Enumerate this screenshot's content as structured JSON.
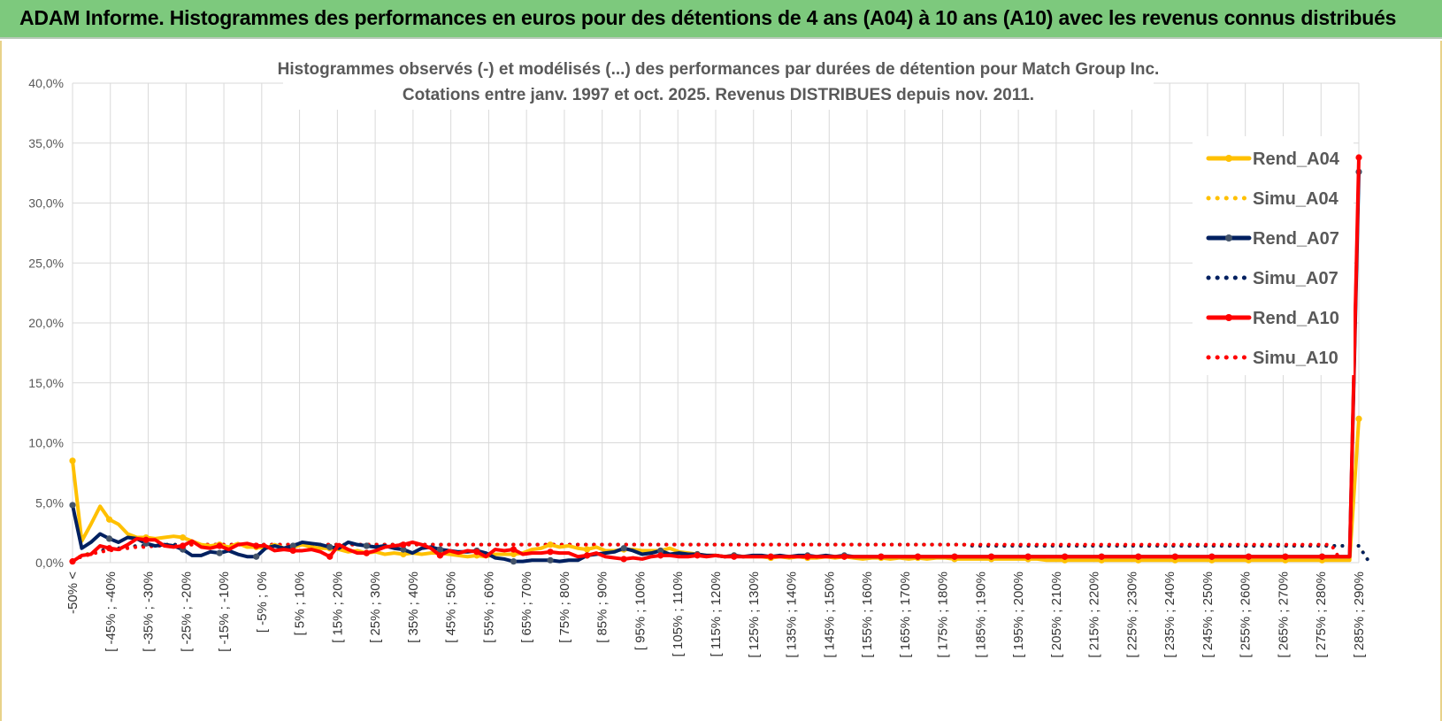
{
  "banner": {
    "title": "ADAM Informe. Histogrammes des performances en euros pour des détentions de 4 ans (A04) à 10 ans (A10) avec les revenus connus distribués",
    "color": "#7dc97d"
  },
  "chart_data": {
    "type": "line",
    "title": "Histogrammes observés (-) et modélisés (...) des performances par durées de détention pour Match Group Inc.",
    "subtitle": "Cotations entre janv. 1997 et oct. 2025.  Revenus DISTRIBUES depuis nov. 2011.",
    "xlabel": "",
    "ylabel": "",
    "ylim": [
      0,
      40
    ],
    "yticks": [
      "0,0%",
      "5,0%",
      "10,0%",
      "15,0%",
      "20,0%",
      "25,0%",
      "30,0%",
      "35,0%",
      "40,0%"
    ],
    "grid": true,
    "legend_position": "right",
    "x_tick_labels": [
      "-50% <",
      "[ -45% ; -40%",
      "[ -35% ; -30%",
      "[ -25% ; -20%",
      "[ -15% ; -10%",
      "[ -5% ; 0%",
      "[ 5% ; 10%",
      "[ 15% ; 20%",
      "[ 25% ; 30%",
      "[ 35% ; 40%",
      "[ 45% ; 50%",
      "[ 55% ; 60%",
      "[ 65% ; 70%",
      "[ 75% ; 80%",
      "[ 85% ; 90%",
      "[ 95% ; 100%",
      "[ 105% ; 110%",
      "[ 115% ; 120%",
      "[ 125% ; 130%",
      "[ 135% ; 140%",
      "[ 145% ; 150%",
      "[ 155% ; 160%",
      "[ 165% ; 170%",
      "[ 175% ; 180%",
      "[ 185% ; 190%",
      "[ 195% ; 200%",
      "[ 205% ; 210%",
      "[ 215% ; 220%",
      "[ 225% ; 230%",
      "[ 235% ; 240%",
      "[ 245% ; 250%",
      "[ 255% ; 260%",
      "[ 265% ; 270%",
      "[ 275% ; 280%",
      "[ 285% ; 290%"
    ],
    "series": [
      {
        "name": "Rend_A04",
        "color": "#ffc000",
        "style": "solid",
        "values": [
          8.5,
          1.8,
          3.2,
          4.7,
          3.6,
          3.2,
          2.4,
          2.1,
          2.1,
          2.0,
          2.1,
          2.2,
          2.1,
          1.8,
          1.5,
          1.4,
          1.5,
          1.3,
          1.6,
          1.3,
          1.3,
          1.2,
          1.5,
          1.2,
          1.3,
          1.5,
          1.3,
          1.2,
          1.2,
          1.1,
          0.9,
          1.0,
          0.8,
          0.9,
          0.7,
          0.8,
          0.7,
          0.8,
          0.7,
          0.8,
          0.8,
          0.7,
          0.6,
          0.5,
          0.6,
          0.5,
          0.7,
          0.7,
          0.7,
          0.8,
          1.1,
          1.2,
          1.5,
          1.3,
          1.4,
          1.2,
          1.1,
          1.3,
          1.0,
          1.0,
          1.1,
          1.1,
          1.0,
          1.0,
          1.0,
          1.2,
          0.9,
          0.8,
          0.7,
          0.6,
          0.6,
          0.5,
          0.6,
          0.5,
          0.5,
          0.5,
          0.4,
          0.5,
          0.4,
          0.5,
          0.4,
          0.4,
          0.5,
          0.4,
          0.5,
          0.4,
          0.3,
          0.4,
          0.4,
          0.3,
          0.4,
          0.3,
          0.4,
          0.3,
          0.4,
          0.4,
          0.3,
          0.3,
          0.3,
          0.3,
          0.3,
          0.3,
          0.3,
          0.3,
          0.3,
          0.3,
          0.2,
          0.2,
          0.2,
          0.2,
          0.2,
          0.2,
          0.2,
          0.2,
          0.2,
          0.2,
          0.2,
          0.2,
          0.2,
          0.2,
          0.2,
          0.2,
          0.2,
          0.2,
          0.2,
          0.2,
          0.2,
          0.2,
          0.2,
          0.2,
          0.2,
          0.2,
          0.2,
          0.2,
          0.2,
          0.2,
          0.2,
          0.2,
          0.2,
          0.2,
          12.0
        ]
      },
      {
        "name": "Simu_A04",
        "color": "#ffc000",
        "style": "dotted",
        "values": [
          0.2,
          0.6,
          0.8,
          1.0,
          1.1,
          1.2,
          1.3,
          1.4,
          1.4,
          1.5,
          1.5,
          1.5,
          1.5,
          1.5,
          1.5,
          1.5,
          1.5,
          1.5,
          1.5,
          1.5,
          1.5,
          1.5,
          1.5,
          1.5,
          1.5,
          1.5,
          1.5,
          1.5,
          1.5,
          1.5,
          1.5,
          1.5,
          1.5,
          1.5,
          1.5,
          1.5,
          1.5,
          1.5,
          1.5,
          1.5,
          1.5,
          1.5,
          1.5,
          1.5,
          1.5,
          1.5,
          1.5,
          1.5,
          1.5,
          1.5,
          1.5,
          1.5,
          1.5,
          1.5,
          1.5,
          1.5,
          1.5,
          1.5,
          1.5,
          1.5,
          1.5,
          1.5,
          1.5,
          1.5,
          1.5,
          1.5,
          1.5,
          1.5,
          1.5,
          1.5,
          1.5,
          1.5,
          1.5,
          1.5,
          1.5,
          1.5,
          1.5,
          1.5,
          1.5,
          1.5,
          1.5,
          1.5,
          1.5,
          1.5,
          1.5,
          1.5,
          1.5,
          1.5,
          1.5,
          1.5,
          1.5,
          1.5,
          1.5,
          1.5,
          1.5,
          1.5,
          1.5,
          1.5,
          1.4,
          1.4,
          1.4,
          1.4,
          1.4,
          1.4,
          1.4,
          1.4,
          1.4,
          1.4,
          1.4,
          1.4,
          1.4,
          1.4,
          1.4,
          1.4,
          1.4,
          1.4,
          1.4,
          1.4,
          1.4,
          1.4,
          1.4,
          1.4,
          1.4,
          1.4,
          1.4,
          1.4,
          1.4,
          1.4,
          1.4,
          1.4,
          1.4,
          1.4,
          1.4,
          1.4,
          1.4,
          1.4,
          1.4,
          1.4,
          1.4,
          1.4,
          1.4,
          0.2
        ]
      },
      {
        "name": "Rend_A07",
        "color": "#002060",
        "style": "solid",
        "values": [
          4.8,
          1.2,
          1.7,
          2.4,
          2.0,
          1.7,
          2.1,
          2.0,
          1.6,
          1.4,
          1.5,
          1.4,
          1.1,
          0.6,
          0.6,
          0.9,
          0.8,
          1.0,
          0.7,
          0.5,
          0.5,
          1.2,
          1.4,
          1.2,
          1.4,
          1.7,
          1.6,
          1.5,
          1.3,
          1.2,
          1.7,
          1.5,
          1.4,
          1.3,
          1.4,
          1.2,
          1.1,
          0.8,
          1.2,
          1.3,
          1.1,
          1.0,
          0.9,
          0.9,
          1.0,
          0.8,
          0.4,
          0.3,
          0.1,
          0.1,
          0.2,
          0.2,
          0.2,
          0.1,
          0.2,
          0.2,
          0.6,
          0.7,
          0.8,
          0.9,
          1.2,
          1.0,
          0.7,
          0.8,
          1.0,
          0.7,
          0.8,
          0.7,
          0.7,
          0.6,
          0.6,
          0.5,
          0.6,
          0.5,
          0.6,
          0.6,
          0.5,
          0.6,
          0.5,
          0.6,
          0.6,
          0.5,
          0.6,
          0.5,
          0.6,
          0.5,
          0.5,
          0.5,
          0.5,
          0.5,
          0.5,
          0.5,
          0.5,
          0.5,
          0.5,
          0.5,
          0.5,
          0.5,
          0.5,
          0.5,
          0.5,
          0.5,
          0.5,
          0.5,
          0.5,
          0.5,
          0.5,
          0.5,
          0.5,
          0.5,
          0.5,
          0.5,
          0.5,
          0.5,
          0.5,
          0.5,
          0.5,
          0.5,
          0.5,
          0.5,
          0.5,
          0.5,
          0.5,
          0.5,
          0.5,
          0.5,
          0.5,
          0.5,
          0.5,
          0.5,
          0.5,
          0.5,
          0.5,
          0.5,
          0.5,
          0.5,
          0.5,
          0.5,
          0.5,
          0.5,
          32.6
        ]
      },
      {
        "name": "Simu_A07",
        "color": "#002060",
        "style": "dotted",
        "values": [
          0.2,
          0.5,
          0.8,
          1.0,
          1.1,
          1.2,
          1.3,
          1.4,
          1.4,
          1.5,
          1.5,
          1.5,
          1.5,
          1.5,
          1.5,
          1.5,
          1.5,
          1.5,
          1.5,
          1.5,
          1.5,
          1.5,
          1.5,
          1.5,
          1.5,
          1.5,
          1.5,
          1.5,
          1.5,
          1.5,
          1.5,
          1.5,
          1.5,
          1.5,
          1.5,
          1.5,
          1.5,
          1.5,
          1.5,
          1.5,
          1.5,
          1.5,
          1.5,
          1.5,
          1.5,
          1.5,
          1.5,
          1.5,
          1.5,
          1.5,
          1.5,
          1.5,
          1.5,
          1.5,
          1.5,
          1.5,
          1.5,
          1.5,
          1.5,
          1.5,
          1.5,
          1.5,
          1.5,
          1.5,
          1.5,
          1.5,
          1.5,
          1.5,
          1.5,
          1.5,
          1.5,
          1.5,
          1.5,
          1.5,
          1.5,
          1.5,
          1.5,
          1.5,
          1.5,
          1.5,
          1.5,
          1.5,
          1.5,
          1.5,
          1.5,
          1.5,
          1.5,
          1.5,
          1.5,
          1.5,
          1.5,
          1.5,
          1.5,
          1.5,
          1.5,
          1.5,
          1.5,
          1.5,
          1.4,
          1.4,
          1.4,
          1.4,
          1.4,
          1.4,
          1.4,
          1.4,
          1.4,
          1.4,
          1.4,
          1.4,
          1.4,
          1.4,
          1.4,
          1.4,
          1.4,
          1.4,
          1.4,
          1.4,
          1.4,
          1.4,
          1.4,
          1.4,
          1.4,
          1.4,
          1.4,
          1.4,
          1.4,
          1.4,
          1.4,
          1.4,
          1.4,
          1.4,
          1.4,
          1.4,
          1.4,
          1.4,
          1.4,
          1.4,
          1.4,
          1.4,
          1.4,
          0.2
        ]
      },
      {
        "name": "Rend_A10",
        "color": "#ff0000",
        "style": "solid",
        "values": [
          0.1,
          0.6,
          0.7,
          1.4,
          1.2,
          1.1,
          1.5,
          2.0,
          1.9,
          1.9,
          1.4,
          1.3,
          1.4,
          1.8,
          1.3,
          1.2,
          1.4,
          1.1,
          1.5,
          1.6,
          1.4,
          1.4,
          1.0,
          1.1,
          1.0,
          1.0,
          1.1,
          0.9,
          0.5,
          1.5,
          1.1,
          0.8,
          0.8,
          1.0,
          1.3,
          1.4,
          1.5,
          1.7,
          1.5,
          1.2,
          0.6,
          1.0,
          0.8,
          1.0,
          0.9,
          0.5,
          1.1,
          1.0,
          1.1,
          0.7,
          0.8,
          0.8,
          0.9,
          0.8,
          0.8,
          0.5,
          0.6,
          0.8,
          0.5,
          0.4,
          0.3,
          0.4,
          0.3,
          0.5,
          0.6,
          0.6,
          0.5,
          0.5,
          0.6,
          0.5,
          0.6,
          0.5,
          0.5,
          0.5,
          0.5,
          0.5,
          0.5,
          0.5,
          0.5,
          0.5,
          0.5,
          0.5,
          0.5,
          0.5,
          0.5,
          0.5,
          0.5,
          0.5,
          0.5,
          0.5,
          0.5,
          0.5,
          0.5,
          0.5,
          0.5,
          0.5,
          0.5,
          0.5,
          0.5,
          0.5,
          0.5,
          0.5,
          0.5,
          0.5,
          0.5,
          0.5,
          0.5,
          0.5,
          0.5,
          0.5,
          0.5,
          0.5,
          0.5,
          0.5,
          0.5,
          0.5,
          0.5,
          0.5,
          0.5,
          0.5,
          0.5,
          0.5,
          0.5,
          0.5,
          0.5,
          0.5,
          0.5,
          0.5,
          0.5,
          0.5,
          0.5,
          0.5,
          0.5,
          0.5,
          0.5,
          0.5,
          0.5,
          0.5,
          0.5,
          0.5,
          33.8
        ]
      },
      {
        "name": "Simu_A10",
        "color": "#ff0000",
        "style": "dotted",
        "values": [
          0.2,
          0.5,
          0.7,
          0.9,
          1.0,
          1.1,
          1.2,
          1.3,
          1.3,
          1.4,
          1.4,
          1.4,
          1.4,
          1.5,
          1.5,
          1.5,
          1.5,
          1.5,
          1.5,
          1.5,
          1.5,
          1.5,
          1.5,
          1.5,
          1.5,
          1.5,
          1.5,
          1.5,
          1.5,
          1.5,
          1.5,
          1.5,
          1.5,
          1.5,
          1.5,
          1.5,
          1.5,
          1.5,
          1.5,
          1.5,
          1.5,
          1.5,
          1.5,
          1.5,
          1.5,
          1.5,
          1.5,
          1.5,
          1.5,
          1.5,
          1.5,
          1.5,
          1.5,
          1.5,
          1.5,
          1.5,
          1.5,
          1.5,
          1.5,
          1.5,
          1.5,
          1.5,
          1.5,
          1.5,
          1.5,
          1.5,
          1.5,
          1.5,
          1.5,
          1.5,
          1.5,
          1.5,
          1.5,
          1.5,
          1.5,
          1.5,
          1.5,
          1.5,
          1.5,
          1.5,
          1.5,
          1.5,
          1.5,
          1.5,
          1.5,
          1.5,
          1.5,
          1.5,
          1.5,
          1.5,
          1.5,
          1.5,
          1.5,
          1.5,
          1.5,
          1.5,
          1.5,
          1.5,
          1.5,
          1.5,
          1.5,
          1.5,
          1.5,
          1.5,
          1.5,
          1.5,
          1.5,
          1.5,
          1.5,
          1.5,
          1.5,
          1.5,
          1.5,
          1.5,
          1.5,
          1.5,
          1.5,
          1.5,
          1.5,
          1.5,
          1.5,
          1.5,
          1.5,
          1.5,
          1.5,
          1.5,
          1.5,
          1.5,
          1.5,
          1.5,
          1.5,
          1.5,
          1.5,
          1.5,
          1.5,
          1.5,
          1.5,
          1.5,
          0.2
        ]
      }
    ]
  }
}
